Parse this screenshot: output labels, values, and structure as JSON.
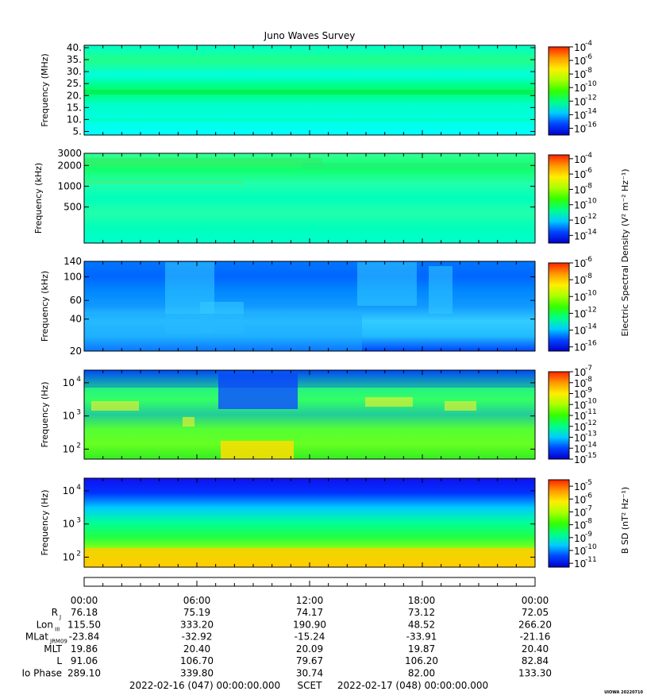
{
  "chart_data": {
    "type": "heatmap",
    "title": "Juno Waves Survey",
    "panels": [
      {
        "id": "hfr-high",
        "ylabel": "Frequency (MHz)",
        "yscale": "linear",
        "ylim": [
          3.5,
          41
        ],
        "yticks": [
          5,
          10,
          15,
          20,
          25,
          30,
          35,
          40
        ],
        "ytick_labels": [
          "5.",
          "10.",
          "15.",
          "20.",
          "25.",
          "30.",
          "35.",
          "40."
        ],
        "colorbar": {
          "exponents": [
            "-4",
            "-6",
            "-8",
            "-10",
            "-12",
            "-14",
            "-16"
          ],
          "range": [
            -17,
            -4
          ]
        },
        "gradient": [
          "#00ffcc",
          "#22ff88",
          "#00ffdd",
          "#00ff66",
          "#00ffcc",
          "#00ffe0",
          "#00ffff"
        ]
      },
      {
        "id": "hfr-low",
        "ylabel": "Frequency (kHz)",
        "yscale": "log",
        "ylim": [
          150,
          3000
        ],
        "yticks": [
          500,
          1000,
          2000,
          3000
        ],
        "ytick_labels": [
          "500",
          "1000",
          "2000",
          "3000"
        ],
        "colorbar": {
          "exponents": [
            "-4",
            "-6",
            "-8",
            "-10",
            "-12",
            "-14"
          ],
          "range": [
            -15,
            -3.5
          ]
        },
        "gradient": [
          "#33ff99",
          "#11ff66",
          "#22ffaa",
          "#00ffbb",
          "#22ffaa",
          "#00ffbb",
          "#00ffcc"
        ]
      },
      {
        "id": "lfr-high",
        "ylabel": "Frequency (kHz)",
        "yscale": "log",
        "ylim": [
          20,
          140
        ],
        "yticks": [
          20,
          40,
          60,
          100,
          140
        ],
        "ytick_labels": [
          "20",
          "40",
          "60",
          "100",
          "140"
        ],
        "colorbar": {
          "exponents": [
            "-6",
            "-8",
            "-10",
            "-12",
            "-14",
            "-16"
          ],
          "range": [
            -16.5,
            -6
          ]
        },
        "gradient": [
          "#0077ff",
          "#0066ff",
          "#0088ff",
          "#1199ff",
          "#33ccff",
          "#22bbff",
          "#0044ff"
        ]
      },
      {
        "id": "lfr-low",
        "ylabel": "Frequency (Hz)",
        "yscale": "log",
        "ylim": [
          50,
          24000
        ],
        "yticks": [
          100,
          1000,
          10000
        ],
        "ytick_exponents": [
          "2",
          "3",
          "4"
        ],
        "colorbar": {
          "exponents": [
            "-7",
            "-8",
            "-9",
            "-10",
            "-11",
            "-12",
            "-13",
            "-14",
            "-15"
          ],
          "range": [
            -15,
            -7
          ]
        },
        "gradient": [
          "#0055ff",
          "#22ee88",
          "#33ff66",
          "#22cc99",
          "#55ff33",
          "#66ff22",
          "#33ee22"
        ]
      },
      {
        "id": "magnetic",
        "ylabel": "Frequency (Hz)",
        "yscale": "log",
        "ylim": [
          50,
          24000
        ],
        "yticks": [
          100,
          1000,
          10000
        ],
        "ytick_exponents": [
          "2",
          "3",
          "4"
        ],
        "colorbar": {
          "exponents": [
            "-5",
            "-6",
            "-7",
            "-8",
            "-9",
            "-10",
            "-11"
          ],
          "range": [
            -11.3,
            -4.5
          ]
        },
        "gradient": [
          "#1111ee",
          "#0033ff",
          "#00ccff",
          "#00ff99",
          "#22ff44",
          "#aaff00",
          "#ffcc00"
        ]
      }
    ],
    "colorbar_labels": {
      "electric": "Electric Spectral Density (V² m⁻² Hz⁻¹)",
      "magnetic": "B SD (nT² Hz⁻¹)"
    },
    "x_ticks": [
      "00:00",
      "06:00",
      "12:00",
      "18:00",
      "00:00"
    ],
    "ephemeris": [
      {
        "label": "R",
        "sub": "J",
        "values": [
          "76.18",
          "75.19",
          "74.17",
          "73.12",
          "72.05"
        ]
      },
      {
        "label": "Lon",
        "sub": "III",
        "values": [
          "115.50",
          "333.20",
          "190.90",
          "48.52",
          "266.20"
        ]
      },
      {
        "label": "MLat",
        "sub": "JRM09",
        "values": [
          "-23.84",
          "-32.92",
          "-15.24",
          "-33.91",
          "-21.16"
        ]
      },
      {
        "label": "MLT",
        "sub": "",
        "values": [
          "19.86",
          "20.40",
          "20.09",
          "19.87",
          "20.40"
        ]
      },
      {
        "label": "L",
        "sub": "",
        "values": [
          "91.06",
          "106.70",
          "79.67",
          "106.20",
          "82.84"
        ]
      },
      {
        "label": "Io Phase",
        "sub": "",
        "values": [
          "289.10",
          "339.80",
          "30.74",
          "82.00",
          "133.30"
        ]
      }
    ],
    "footer": {
      "start": "2022-02-16 (047) 00:00:00.000",
      "scet": "SCET",
      "end": "2022-02-17 (048) 00:00:00.000"
    },
    "credit": "UIOWA 20220710"
  },
  "colorbar_gradient": [
    "#0000cc",
    "#0044ff",
    "#00ccff",
    "#00ff88",
    "#33ff00",
    "#aaff00",
    "#ffee00",
    "#ff9900",
    "#ff2200"
  ]
}
